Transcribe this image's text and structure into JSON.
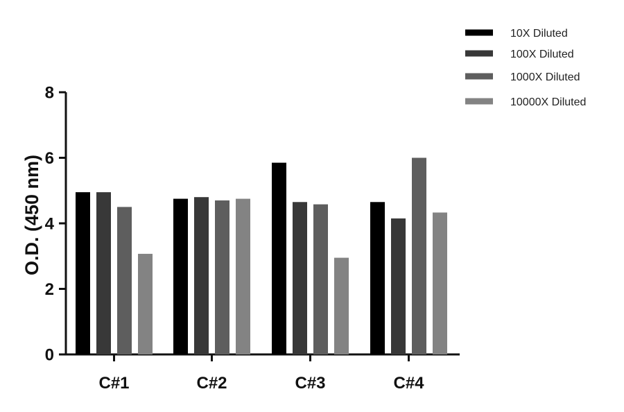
{
  "chart_data": {
    "type": "bar",
    "title": "",
    "xlabel": "",
    "ylabel": "O.D. (450 nm)",
    "ylim": [
      0,
      8
    ],
    "yticks": [
      0,
      2,
      4,
      6,
      8
    ],
    "categories": [
      "C#1",
      "C#2",
      "C#3",
      "C#4"
    ],
    "series": [
      {
        "name": "10X Diluted",
        "color": "#000000",
        "values": [
          4.95,
          4.75,
          5.85,
          4.65
        ]
      },
      {
        "name": "100X Diluted",
        "color": "#383838",
        "values": [
          4.95,
          4.8,
          4.65,
          4.15
        ]
      },
      {
        "name": "1000X Diluted",
        "color": "#5e5e5e",
        "values": [
          4.5,
          4.7,
          4.58,
          6.0
        ]
      },
      {
        "name": "10000X Diluted",
        "color": "#838383",
        "values": [
          3.07,
          4.75,
          2.95,
          4.33
        ]
      }
    ],
    "legend_position": "top-right",
    "grid": false
  }
}
